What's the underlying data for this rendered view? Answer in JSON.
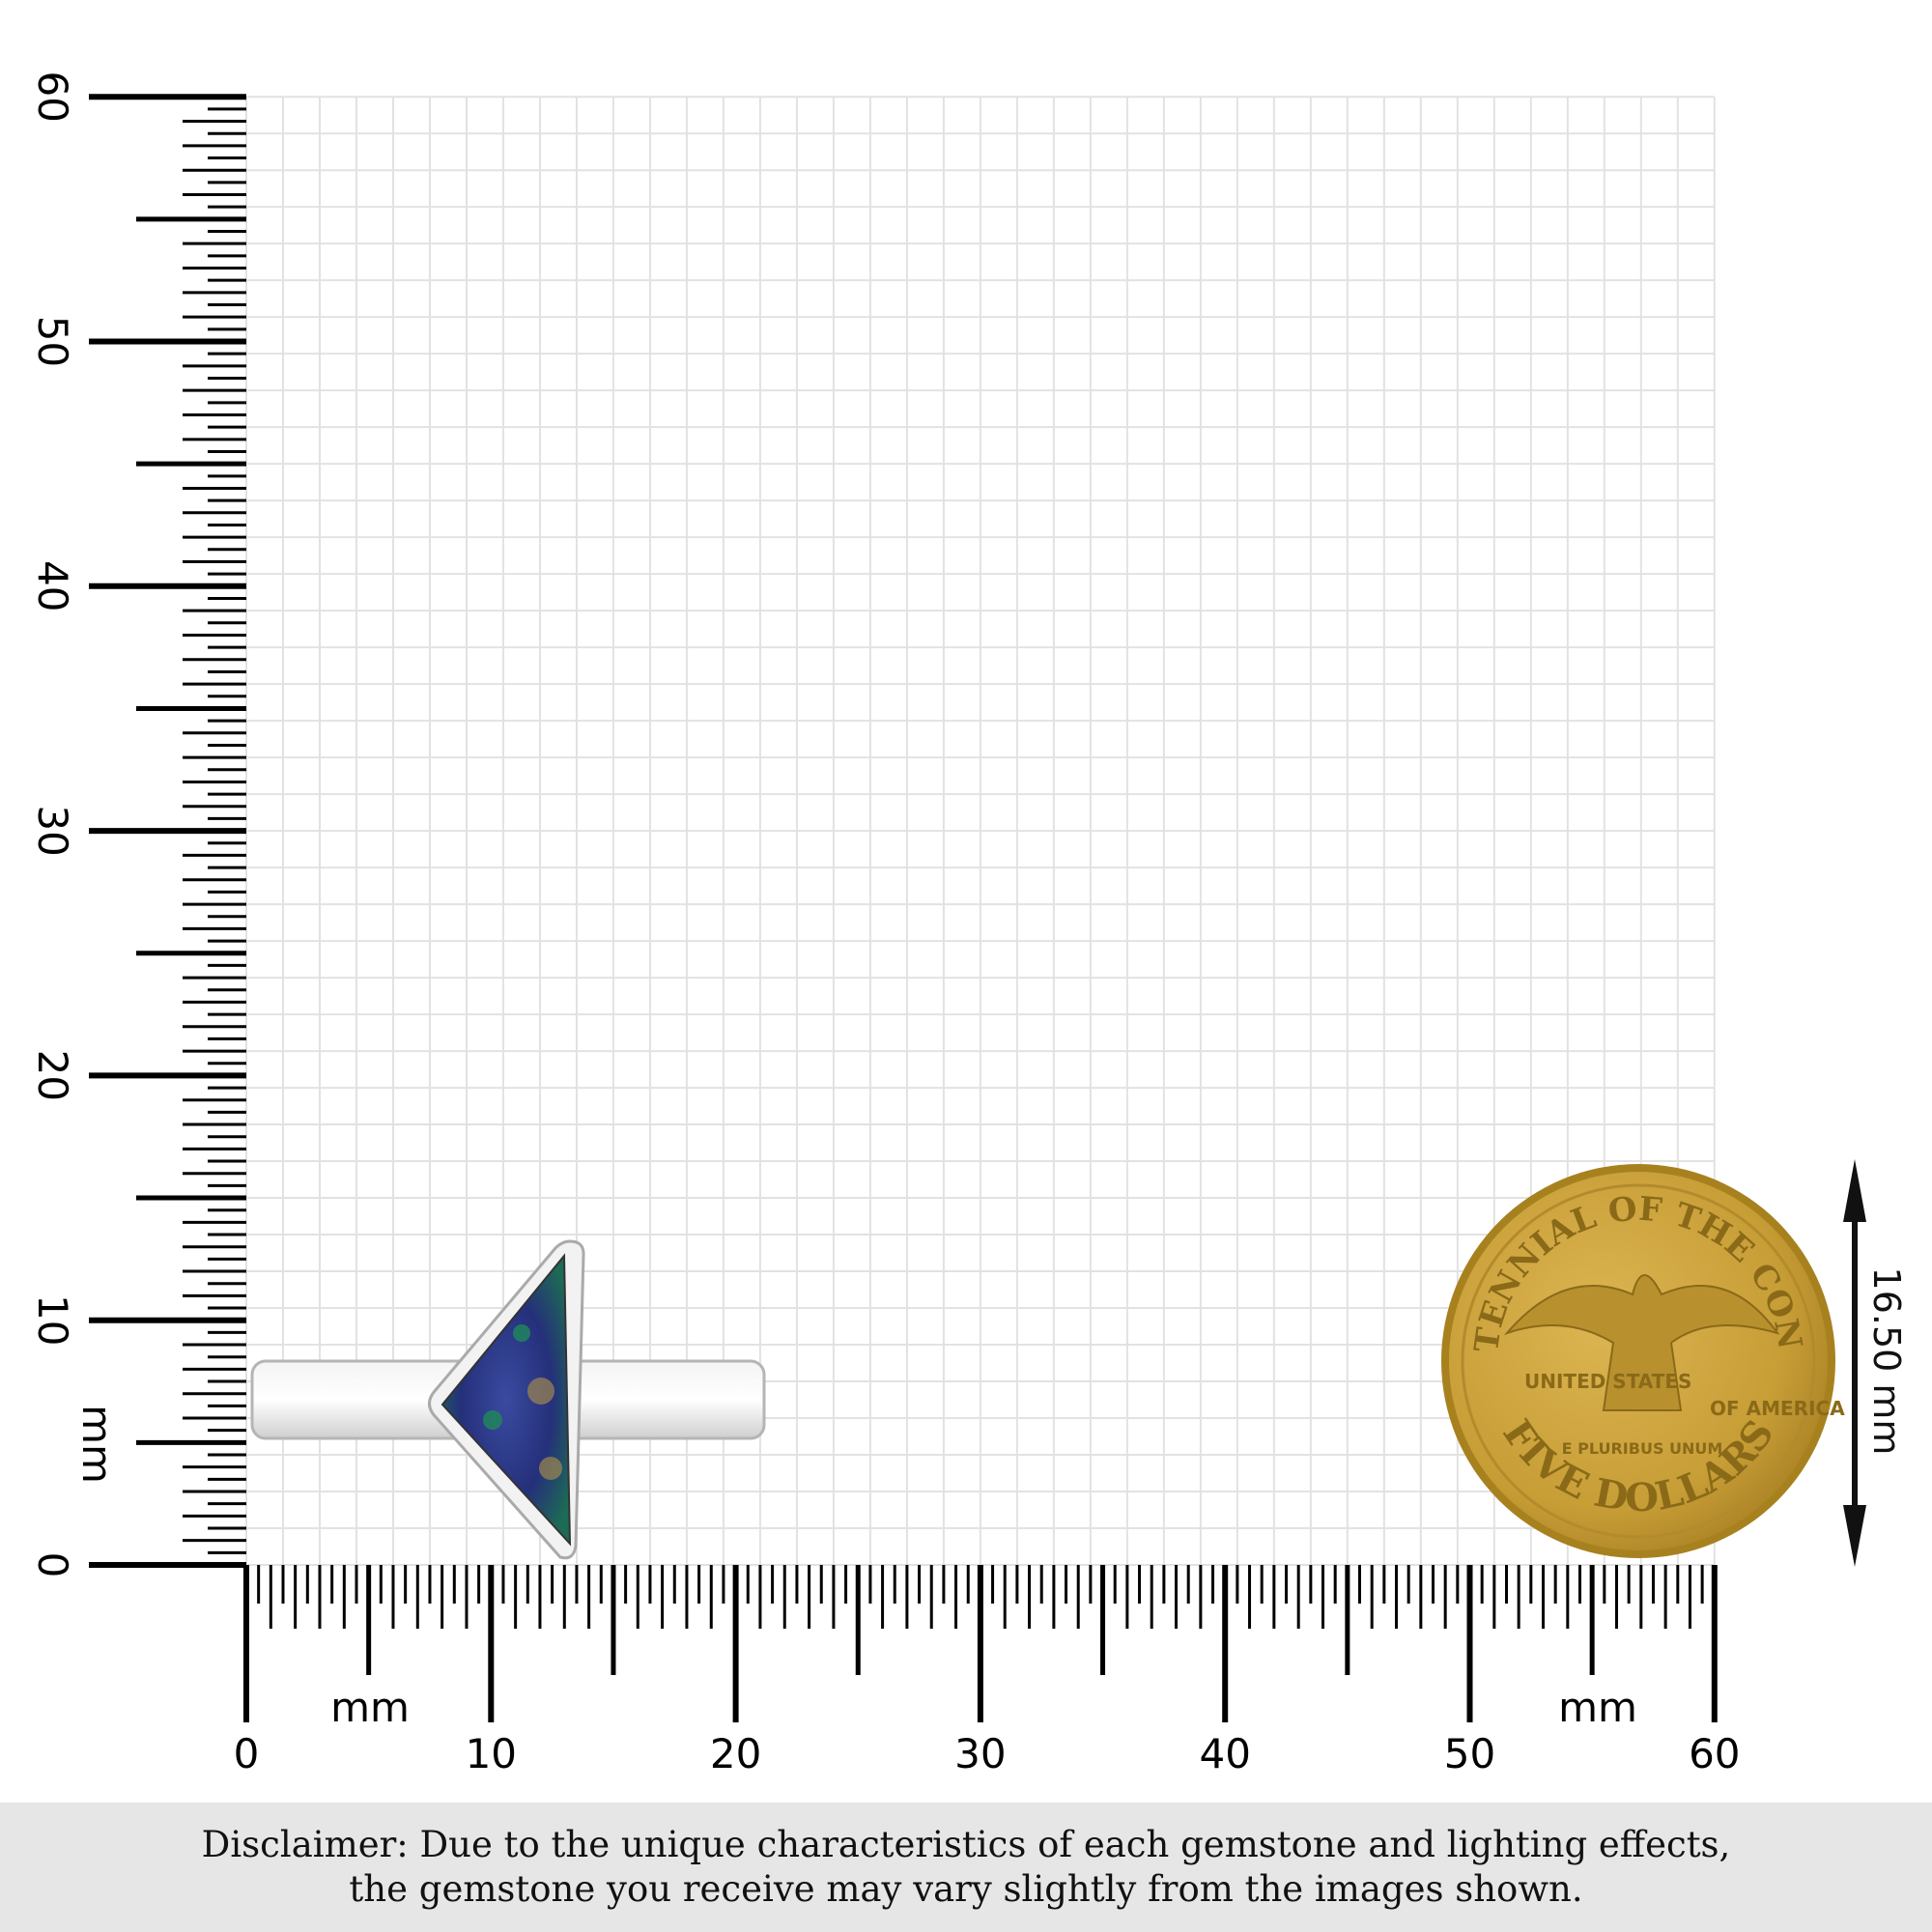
{
  "ruler": {
    "unit_label": "mm",
    "x_labels": [
      "0",
      "10",
      "20",
      "30",
      "40",
      "50",
      "60"
    ],
    "y_labels": [
      "0",
      "10",
      "20",
      "30",
      "40",
      "50",
      "60"
    ]
  },
  "coin": {
    "top_text": "BICENTENNIAL OF THE CONGRESS",
    "left_text": "UNITED STATES",
    "right_text": "OF AMERICA",
    "motto": "E PLURIBUS UNUM",
    "bottom_text": "FIVE DOLLARS",
    "color": "#c9a23a"
  },
  "dimension": {
    "label": "16.50 mm"
  },
  "gem": {
    "colors": [
      "#2b3a8c",
      "#1f8a5a",
      "#a08850"
    ]
  },
  "disclaimer": {
    "line1": "Disclaimer: Due to the unique characteristics of each gemstone and lighting effects,",
    "line2": "the gemstone you receive may vary slightly from the images shown."
  }
}
